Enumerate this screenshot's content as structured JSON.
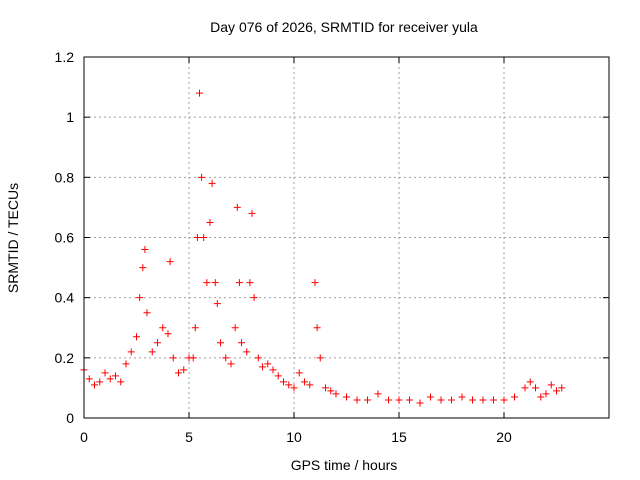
{
  "chart_data": {
    "type": "scatter",
    "title": "Day 076 of 2026, SRMTID for receiver yula",
    "xlabel": "GPS time / hours",
    "ylabel": "SRMTID / TECUs",
    "xlim": [
      0,
      25
    ],
    "ylim": [
      0,
      1.2
    ],
    "x_ticks": [
      0,
      5,
      10,
      15,
      20
    ],
    "x_tick_labels": [
      "0",
      "5",
      "10",
      "15",
      "20"
    ],
    "y_ticks": [
      0,
      0.2,
      0.4,
      0.6,
      0.8,
      1,
      1.2
    ],
    "y_tick_labels": [
      "0",
      "0.2",
      "0.4",
      "0.6",
      "0.8",
      "1",
      "1.2"
    ],
    "grid": true,
    "marker": "+",
    "color": "#ff0000",
    "series": [
      {
        "name": "SRMTID",
        "x": [
          0.0,
          0.25,
          0.5,
          0.75,
          1.0,
          1.25,
          1.5,
          1.75,
          2.0,
          2.25,
          2.5,
          2.65,
          2.8,
          2.9,
          3.0,
          3.25,
          3.5,
          3.75,
          4.0,
          4.1,
          4.25,
          4.5,
          4.75,
          5.0,
          5.2,
          5.3,
          5.4,
          5.5,
          5.6,
          5.7,
          5.85,
          6.0,
          6.1,
          6.25,
          6.35,
          6.5,
          6.75,
          7.0,
          7.2,
          7.3,
          7.4,
          7.5,
          7.75,
          7.9,
          8.0,
          8.1,
          8.3,
          8.5,
          8.75,
          9.0,
          9.25,
          9.5,
          9.75,
          10.0,
          10.25,
          10.5,
          10.75,
          11.0,
          11.1,
          11.25,
          11.5,
          11.75,
          12.0,
          12.5,
          13.0,
          13.5,
          14.0,
          14.5,
          15.0,
          15.5,
          16.0,
          16.5,
          17.0,
          17.5,
          18.0,
          18.5,
          19.0,
          19.5,
          20.0,
          20.5,
          21.0,
          21.25,
          21.5,
          21.75,
          22.0,
          22.25,
          22.5,
          22.75
        ],
        "y": [
          0.16,
          0.13,
          0.11,
          0.12,
          0.15,
          0.13,
          0.14,
          0.12,
          0.18,
          0.22,
          0.27,
          0.4,
          0.5,
          0.56,
          0.35,
          0.22,
          0.25,
          0.3,
          0.28,
          0.52,
          0.2,
          0.15,
          0.16,
          0.2,
          0.2,
          0.3,
          0.6,
          1.08,
          0.8,
          0.6,
          0.45,
          0.65,
          0.78,
          0.45,
          0.38,
          0.25,
          0.2,
          0.18,
          0.3,
          0.7,
          0.45,
          0.25,
          0.22,
          0.45,
          0.68,
          0.4,
          0.2,
          0.17,
          0.18,
          0.16,
          0.14,
          0.12,
          0.11,
          0.1,
          0.15,
          0.12,
          0.11,
          0.45,
          0.3,
          0.2,
          0.1,
          0.09,
          0.08,
          0.07,
          0.06,
          0.06,
          0.08,
          0.06,
          0.06,
          0.06,
          0.05,
          0.07,
          0.06,
          0.06,
          0.07,
          0.06,
          0.06,
          0.06,
          0.06,
          0.07,
          0.1,
          0.12,
          0.1,
          0.07,
          0.08,
          0.11,
          0.09,
          0.1
        ]
      }
    ]
  }
}
